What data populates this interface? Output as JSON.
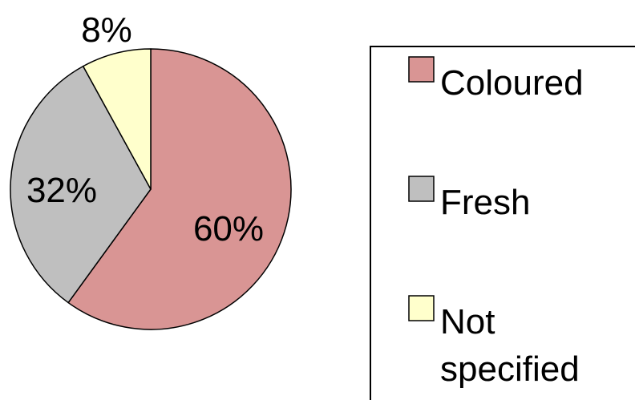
{
  "chart_data": {
    "type": "pie",
    "categories": [
      "Coloured",
      "Fresh",
      "Not specified"
    ],
    "values": [
      60,
      32,
      8
    ],
    "value_labels": [
      "60%",
      "32%",
      "8%"
    ],
    "colors": [
      "#d99594",
      "#bfbfbf",
      "#ffffcc"
    ],
    "legend_placement": "right",
    "legend": {
      "items": [
        {
          "lines": [
            "Coloured"
          ]
        },
        {
          "lines": [
            "Fresh"
          ]
        },
        {
          "lines": [
            "Not",
            "specified"
          ]
        }
      ]
    }
  }
}
